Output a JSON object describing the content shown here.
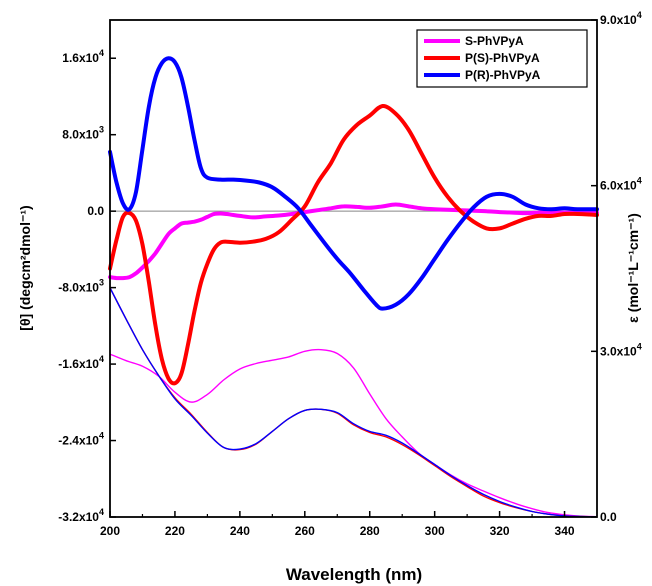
{
  "chart_data": {
    "type": "line",
    "xlabel": "Wavelength (nm)",
    "ylabel_left": "[θ] (degcm²dmol⁻¹)",
    "ylabel_right": "ε (mol⁻¹L⁻¹cm⁻¹)",
    "xlim": [
      200,
      350
    ],
    "ylim_left": [
      -32000,
      20000
    ],
    "ylim_right": [
      0,
      90000
    ],
    "x_ticks": [
      {
        "value": 200,
        "label": "200"
      },
      {
        "value": 220,
        "label": "220"
      },
      {
        "value": 240,
        "label": "240"
      },
      {
        "value": 260,
        "label": "260"
      },
      {
        "value": 280,
        "label": "280"
      },
      {
        "value": 300,
        "label": "300"
      },
      {
        "value": 320,
        "label": "320"
      },
      {
        "value": 340,
        "label": "340"
      }
    ],
    "y_left_ticks": [
      {
        "value": 16000,
        "mant": "1.6x10",
        "exp": "4"
      },
      {
        "value": 8000,
        "mant": "8.0x10",
        "exp": "3"
      },
      {
        "value": 0,
        "mant": "0.0",
        "exp": ""
      },
      {
        "value": -8000,
        "mant": "-8.0x10",
        "exp": "3"
      },
      {
        "value": -16000,
        "mant": "-1.6x10",
        "exp": "4"
      },
      {
        "value": -24000,
        "mant": "-2.4x10",
        "exp": "4"
      },
      {
        "value": -32000,
        "mant": "-3.2x10",
        "exp": "4"
      }
    ],
    "y_right_ticks": [
      {
        "value": 90000,
        "mant": "9.0x10",
        "exp": "4"
      },
      {
        "value": 60000,
        "mant": "6.0x10",
        "exp": "4"
      },
      {
        "value": 30000,
        "mant": "3.0x10",
        "exp": "4"
      },
      {
        "value": 0,
        "mant": "0.0",
        "exp": ""
      }
    ],
    "legend": {
      "placement": "top-right",
      "entries": [
        "S-PhVPyA",
        "P(S)-PhVPyA",
        "P(R)-PhVPyA"
      ]
    },
    "zero_line": true,
    "cd_series": [
      {
        "name": "S-PhVPyA",
        "color": "#ff00ff",
        "axis": "left",
        "x": [
          200,
          202,
          204,
          206,
          208,
          210,
          212,
          214,
          216,
          218,
          220,
          222,
          224,
          226,
          228,
          230,
          232,
          234,
          236,
          238,
          240,
          244,
          248,
          252,
          256,
          260,
          264,
          268,
          272,
          276,
          280,
          284,
          288,
          292,
          296,
          300,
          304,
          308,
          312,
          316,
          320,
          324,
          328,
          332,
          336,
          340,
          344,
          350
        ],
        "y": [
          -6900,
          -7000,
          -7000,
          -6900,
          -6500,
          -5900,
          -5200,
          -4400,
          -3400,
          -2400,
          -1800,
          -1300,
          -1200,
          -1100,
          -900,
          -600,
          -300,
          -250,
          -300,
          -400,
          -500,
          -650,
          -550,
          -450,
          -300,
          -100,
          100,
          300,
          500,
          450,
          350,
          500,
          700,
          500,
          300,
          200,
          150,
          100,
          50,
          0,
          -100,
          -150,
          -200,
          -150,
          -150,
          -150,
          -150,
          -150
        ]
      },
      {
        "name": "P(S)-PhVPyA",
        "color": "#ff0000",
        "axis": "left",
        "x": [
          200,
          202,
          204,
          206,
          208,
          210,
          212,
          214,
          216,
          218,
          220,
          222,
          224,
          226,
          228,
          230,
          232,
          234,
          236,
          240,
          244,
          248,
          252,
          256,
          260,
          264,
          268,
          272,
          276,
          280,
          284,
          288,
          292,
          296,
          300,
          304,
          308,
          312,
          316,
          320,
          324,
          328,
          332,
          336,
          340,
          344,
          350
        ],
        "y": [
          -6000,
          -3000,
          -600,
          -200,
          -1000,
          -3500,
          -7500,
          -12000,
          -15500,
          -17500,
          -18000,
          -17000,
          -14000,
          -10500,
          -7500,
          -5500,
          -4000,
          -3300,
          -3200,
          -3300,
          -3200,
          -2900,
          -2200,
          -900,
          500,
          3000,
          5000,
          7500,
          9000,
          10000,
          11000,
          10200,
          8500,
          6000,
          3500,
          1500,
          0,
          -1100,
          -1800,
          -1800,
          -1300,
          -800,
          -500,
          -500,
          -300,
          -300,
          -400
        ]
      },
      {
        "name": "P(R)-PhVPyA",
        "color": "#0000ff",
        "axis": "left",
        "x": [
          200,
          202,
          204,
          206,
          208,
          210,
          212,
          214,
          216,
          218,
          220,
          222,
          224,
          226,
          228,
          230,
          234,
          238,
          242,
          246,
          250,
          254,
          258,
          262,
          266,
          270,
          274,
          278,
          282,
          284,
          288,
          292,
          296,
          300,
          304,
          308,
          312,
          316,
          320,
          324,
          328,
          332,
          336,
          340,
          344,
          350
        ],
        "y": [
          6200,
          3000,
          800,
          200,
          2000,
          6500,
          11000,
          14000,
          15500,
          16000,
          15600,
          14000,
          11000,
          7500,
          4500,
          3500,
          3300,
          3300,
          3200,
          3000,
          2500,
          1500,
          300,
          -1500,
          -3300,
          -5000,
          -6500,
          -8200,
          -9800,
          -10200,
          -9800,
          -8700,
          -7000,
          -5000,
          -3000,
          -1200,
          400,
          1500,
          1800,
          1500,
          700,
          300,
          200,
          300,
          200,
          200
        ]
      }
    ],
    "abs_series": [
      {
        "name": "S-PhVPyA",
        "color": "#ff00ff",
        "axis": "right",
        "x": [
          200,
          205,
          210,
          215,
          220,
          225,
          230,
          235,
          240,
          245,
          250,
          255,
          260,
          265,
          270,
          275,
          280,
          285,
          290,
          295,
          300,
          305,
          310,
          315,
          320,
          325,
          330,
          335,
          340,
          345,
          350
        ],
        "y": [
          29500,
          28300,
          27300,
          25500,
          22600,
          20800,
          22200,
          24800,
          26800,
          27800,
          28400,
          29000,
          30000,
          30300,
          29600,
          27000,
          22300,
          17800,
          14500,
          11600,
          9500,
          7600,
          6000,
          4700,
          3500,
          2400,
          1500,
          800,
          400,
          150,
          50
        ]
      },
      {
        "name": "P(S)-PhVPyA",
        "color": "#ff0000",
        "axis": "right",
        "x": [
          200,
          205,
          210,
          215,
          220,
          225,
          230,
          235,
          240,
          245,
          250,
          255,
          260,
          265,
          270,
          275,
          280,
          285,
          290,
          295,
          300,
          305,
          310,
          315,
          320,
          325,
          330,
          335,
          340,
          345,
          350
        ],
        "y": [
          41500,
          35800,
          30300,
          25600,
          21600,
          18600,
          15300,
          12600,
          12200,
          13200,
          15500,
          17800,
          19300,
          19500,
          18800,
          16700,
          15300,
          14500,
          13100,
          11300,
          9300,
          7300,
          5500,
          3800,
          2600,
          1700,
          1000,
          500,
          200,
          100,
          50
        ]
      },
      {
        "name": "P(R)-PhVPyA",
        "color": "#0000ff",
        "axis": "right",
        "x": [
          200,
          205,
          210,
          215,
          220,
          225,
          230,
          235,
          240,
          245,
          250,
          255,
          260,
          265,
          270,
          275,
          280,
          285,
          290,
          295,
          300,
          305,
          310,
          315,
          320,
          325,
          330,
          335,
          340,
          345,
          350
        ],
        "y": [
          41500,
          35800,
          30300,
          25600,
          21400,
          18400,
          15200,
          12600,
          12300,
          13300,
          15500,
          17800,
          19300,
          19500,
          18900,
          16900,
          15500,
          14800,
          13400,
          11500,
          9500,
          7500,
          5700,
          4100,
          2800,
          1800,
          1000,
          500,
          200,
          100,
          50
        ]
      }
    ]
  }
}
